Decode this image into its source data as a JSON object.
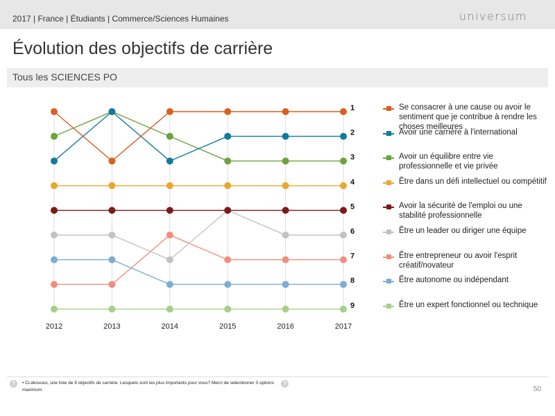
{
  "header": {
    "breadcrumb": "2017 | France | Étudiants | Commerce/Sciences Humaines",
    "logo": "universum"
  },
  "page": {
    "title": "Évolution des objectifs de carrière",
    "section_label": "Tous les SCIENCES PO",
    "page_number": "50"
  },
  "footer": {
    "note": "•  Ci-dessous, une liste de 9 objectifs de carrière. Lesquels sont les plus importants pour vous? Merci de sélectionner 3 options maximum.",
    "help_icon": "question-icon"
  },
  "chart_data": {
    "type": "line",
    "title": "",
    "xlabel": "",
    "ylabel": "",
    "x": [
      "2012",
      "2013",
      "2014",
      "2015",
      "2016",
      "2017"
    ],
    "y_axis": "rank",
    "ylim": [
      1,
      9
    ],
    "y_inverted": true,
    "rank_labels": [
      "1",
      "2",
      "3",
      "4",
      "5",
      "6",
      "7",
      "8",
      "9"
    ],
    "grid": "vertical",
    "legend_position": "right",
    "series": [
      {
        "name": "Se consacrer à une cause ou avoir le sentiment que je contribue à rendre les choses meilleures",
        "color": "#d9601f",
        "values": [
          1,
          3,
          1,
          1,
          1,
          1
        ]
      },
      {
        "name": "Avoir une carrière à l'international",
        "color": "#127a9e",
        "values": [
          3,
          1,
          3,
          2,
          2,
          2
        ]
      },
      {
        "name": "Avoir un équilibre entre vie professionnelle et vie privée",
        "color": "#6ca33a",
        "values": [
          2,
          1,
          2,
          3,
          3,
          3
        ]
      },
      {
        "name": "Être dans un défi intellectuel ou compétitif",
        "color": "#e8a82c",
        "values": [
          4,
          4,
          4,
          4,
          4,
          4
        ]
      },
      {
        "name": "Avoir la sécurité de l'emploi ou une stabilité professionnelle",
        "color": "#7a1a1a",
        "values": [
          5,
          5,
          5,
          5,
          5,
          5
        ]
      },
      {
        "name": "Être un leader ou diriger une équipe",
        "color": "#c2c2c2",
        "values": [
          6,
          6,
          7,
          5,
          6,
          6
        ]
      },
      {
        "name": "Être entrepreneur ou avoir l'esprit créatif/novateur",
        "color": "#ef8f7f",
        "values": [
          8,
          8,
          6,
          7,
          7,
          7
        ]
      },
      {
        "name": "Être autonome ou indépendant",
        "color": "#7cadd2",
        "values": [
          7,
          7,
          8,
          8,
          8,
          8
        ]
      },
      {
        "name": "Être un expert fonctionnel ou technique",
        "color": "#a5d08a",
        "values": [
          9,
          9,
          9,
          9,
          9,
          9
        ]
      }
    ]
  }
}
